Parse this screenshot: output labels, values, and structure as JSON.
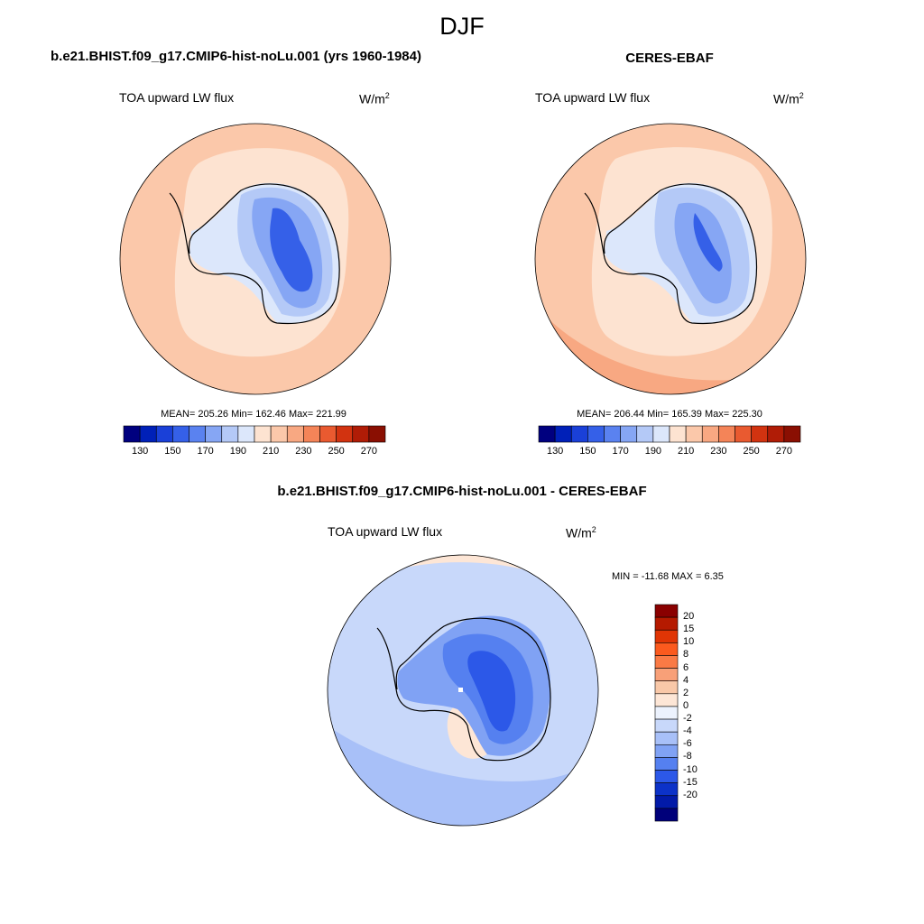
{
  "figure": {
    "title": "DJF"
  },
  "panels": [
    {
      "title": "b.e21.BHIST.f09_g17.CMIP6-hist-noLu.001 (yrs 1960-1984)",
      "variable": "TOA upward LW flux",
      "units_base": "W/m",
      "units_exp": "2",
      "stats": "MEAN= 205.26  Min= 162.46  Max= 221.99",
      "mean": 205.26,
      "min": 162.46,
      "max": 221.99
    },
    {
      "title": "CERES-EBAF",
      "variable": "TOA upward LW flux",
      "units_base": "W/m",
      "units_exp": "2",
      "stats": "MEAN= 206.44  Min= 165.39  Max= 225.30",
      "mean": 206.44,
      "min": 165.39,
      "max": 225.3
    },
    {
      "title": "b.e21.BHIST.f09_g17.CMIP6-hist-noLu.001 - CERES-EBAF",
      "variable": "TOA upward LW flux",
      "units_base": "W/m",
      "units_exp": "2",
      "stats": "MIN = -11.68 MAX =   6.35",
      "min": -11.68,
      "max": 6.35
    }
  ],
  "colorbar_abs": {
    "tick_labels": [
      "130",
      "150",
      "170",
      "190",
      "210",
      "230",
      "250",
      "270"
    ],
    "colors": [
      "#00007f",
      "#0020b8",
      "#1a40d8",
      "#3560e8",
      "#5a82f0",
      "#86a6f4",
      "#b4c9f7",
      "#dce7fb",
      "#fde3d1",
      "#fbc8aa",
      "#f8a882",
      "#f48458",
      "#e95a30",
      "#d23310",
      "#b01c06",
      "#8a0f02"
    ]
  },
  "colorbar_diff": {
    "tick_labels": [
      "20",
      "15",
      "10",
      "8",
      "6",
      "4",
      "2",
      "0",
      "-2",
      "-4",
      "-6",
      "-8",
      "-10",
      "-15",
      "-20"
    ],
    "colors": [
      "#8a0000",
      "#b51a00",
      "#e03505",
      "#fb5a1e",
      "#fa7a45",
      "#f8a078",
      "#f9c8a8",
      "#fde6d6",
      "#ecf2fd",
      "#c8d8fa",
      "#a8c0f8",
      "#80a2f4",
      "#5580f0",
      "#2c58e8",
      "#0c32c8",
      "#021aa8",
      "#00007a"
    ]
  },
  "colors": {
    "background": "#ffffff",
    "coastline": "#000000"
  }
}
